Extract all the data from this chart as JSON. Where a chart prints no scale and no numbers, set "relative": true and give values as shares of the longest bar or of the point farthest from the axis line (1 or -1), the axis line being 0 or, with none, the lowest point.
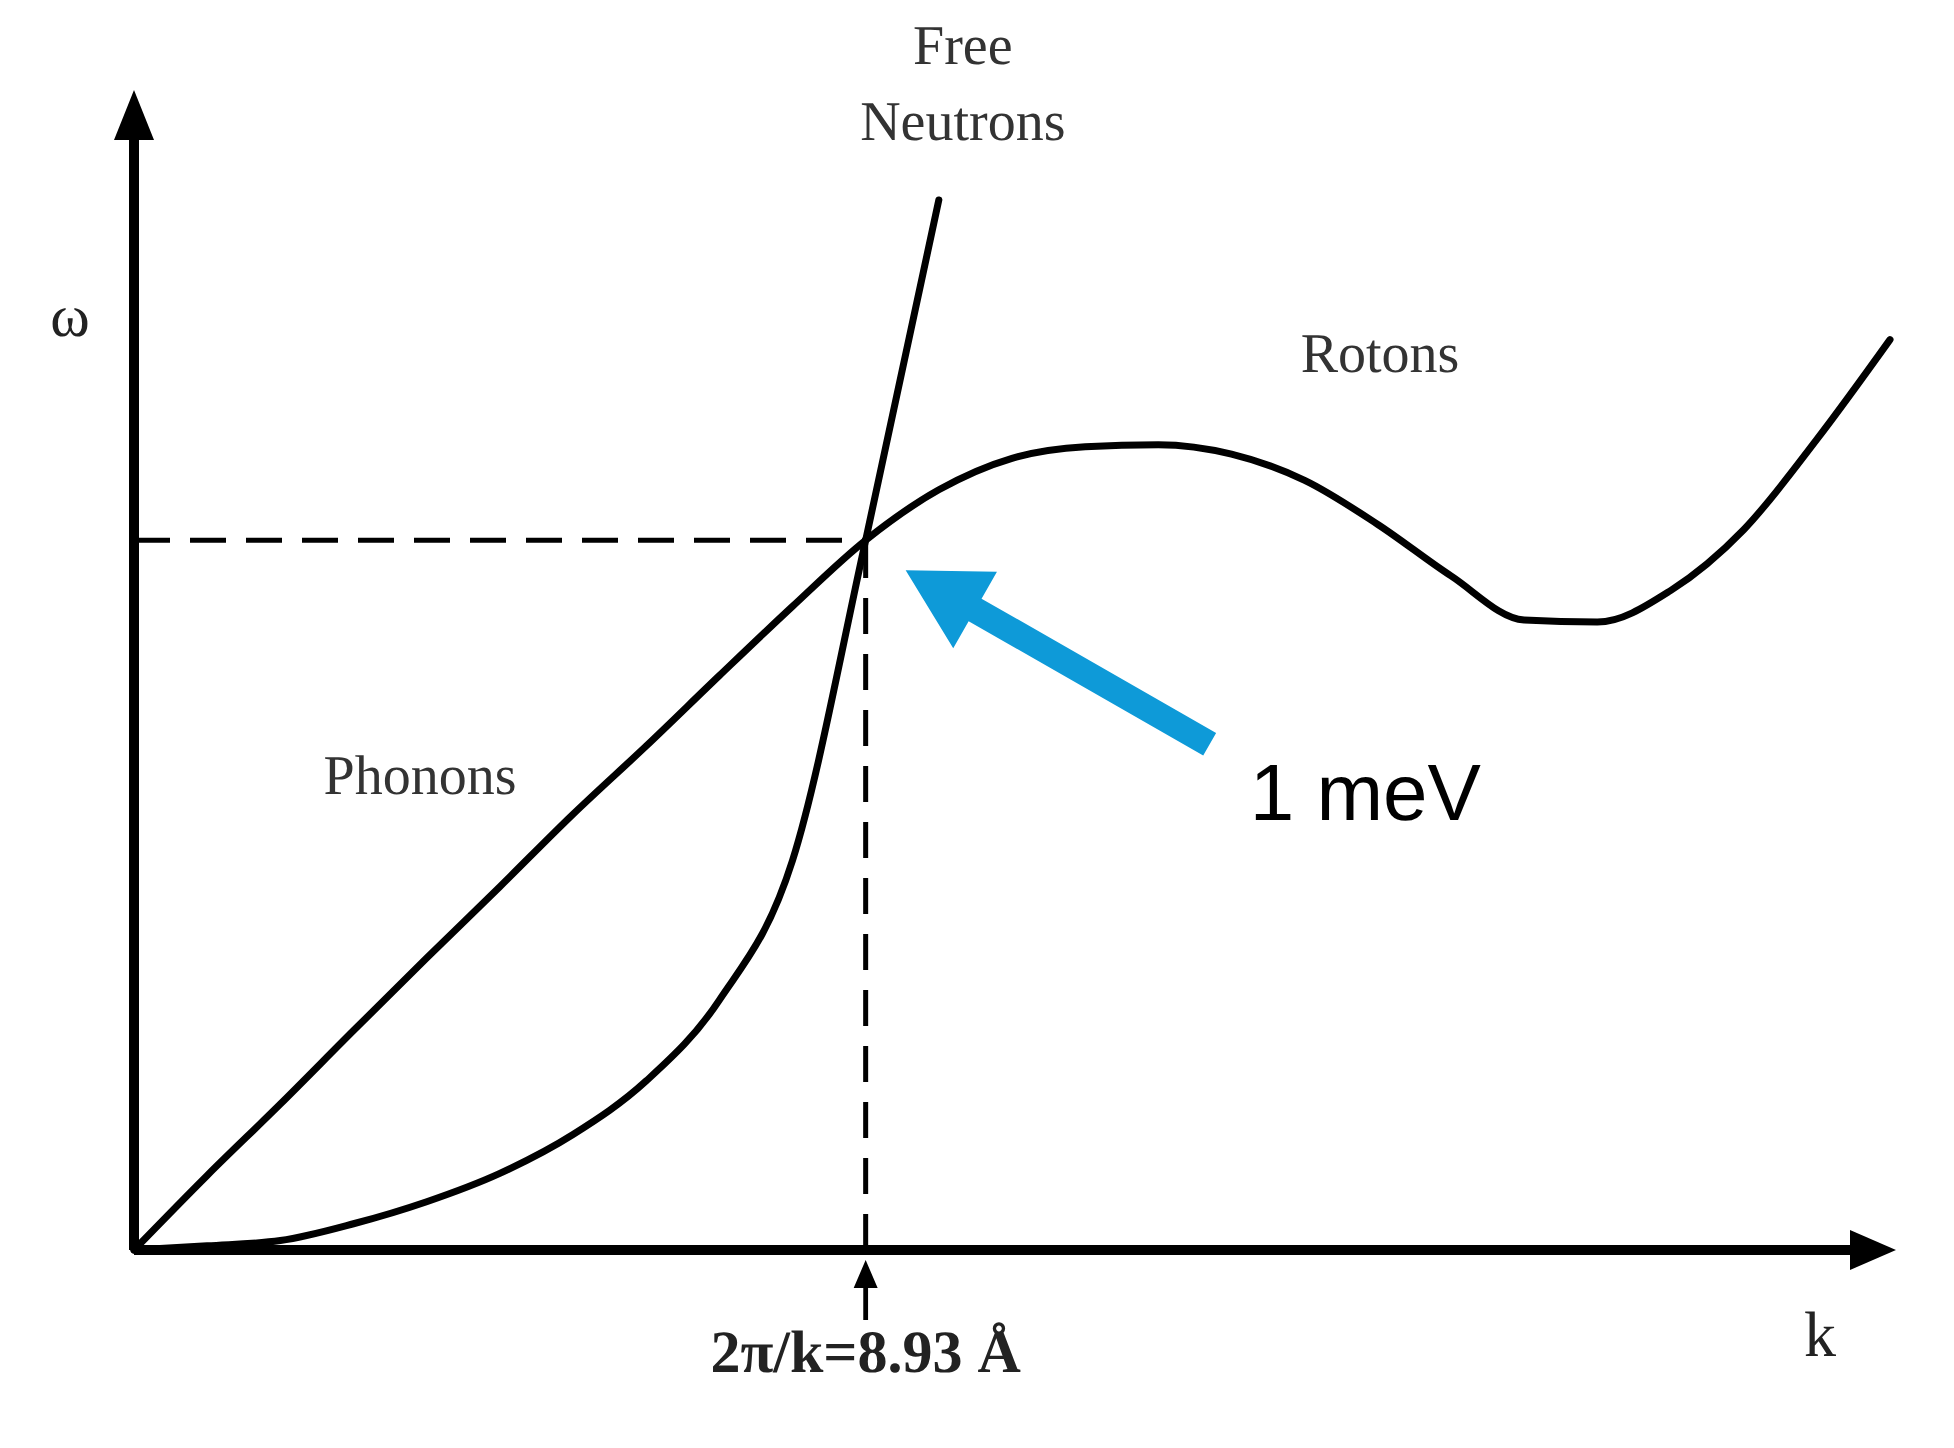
{
  "chart_data": {
    "type": "line",
    "relative": true,
    "xlabel": "k",
    "ylabel": "ω",
    "categories": [
      null,
      null,
      null,
      null,
      null,
      null,
      null,
      null,
      null,
      null,
      null,
      null,
      null,
      null,
      null,
      null,
      null,
      null,
      null,
      null,
      null,
      null,
      null,
      null,
      null
    ],
    "series": [
      {
        "name": "Free Neutrons",
        "color": "#000000",
        "values": [
          0,
          0.004,
          0.009,
          0.025,
          0.046,
          0.073,
          0.11,
          0.161,
          0.238,
          0.371,
          0.676,
          1,
          null,
          null,
          null,
          null,
          null,
          null,
          null,
          null,
          null,
          null,
          null,
          null,
          null
        ]
      },
      {
        "color": "#000000",
        "values": [
          0,
          0.071,
          0.139,
          0.209,
          0.278,
          0.346,
          0.415,
          0.48,
          0.547,
          0.613,
          0.676,
          0.724,
          0.754,
          0.765,
          0.767,
          0.758,
          0.733,
          0.691,
          0.642,
          0.6,
          0.598,
          0.628,
          0.686,
          0.772,
          0.867
        ]
      }
    ],
    "ref_lines": [
      {
        "axis": "y",
        "value": 0.676,
        "line_style": "dashed"
      }
    ],
    "annotations": [
      "Phonons",
      "Rotons",
      "1 meV",
      "2π/k=8.93 Å"
    ],
    "marker": "none",
    "line_style": "solid"
  }
}
